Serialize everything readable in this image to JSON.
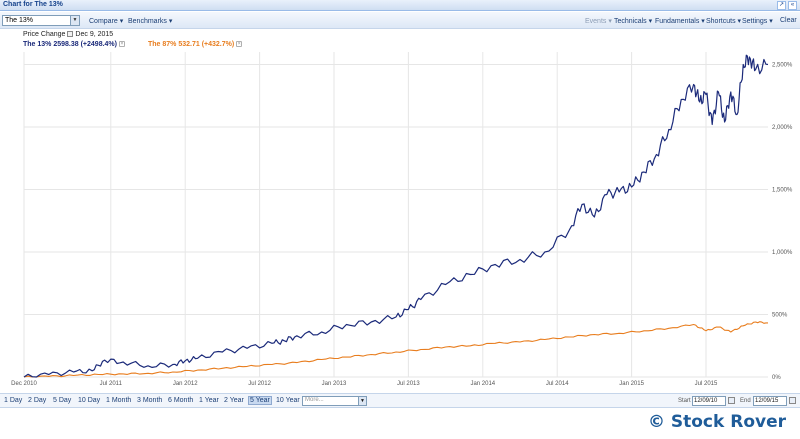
{
  "window": {
    "title": "Chart for The 13%",
    "btn_pin": "↗",
    "btn_collapse": "«"
  },
  "toolbar": {
    "symbol_value": "The 13%",
    "left_menus": [
      "Compare ▾",
      "Benchmarks ▾"
    ],
    "right_menus": [
      "Events ▾",
      "Technicals ▾",
      "Fundamentals ▾",
      "Shortcuts ▾",
      "Settings ▾",
      "Clear"
    ]
  },
  "header": {
    "price_change_label": "Price Change",
    "date": "Dec 9, 2015"
  },
  "legend": [
    {
      "text": "The 13% 2598.38 (+2498.4%)",
      "color": "#1b2a7a"
    },
    {
      "text": "The 87% 532.71 (+432.7%)",
      "color": "#e87d1e"
    }
  ],
  "chart_data": {
    "type": "line",
    "x_tick_labels": [
      "Dec 2010",
      "Jul 2011",
      "Jan 2012",
      "Jul 2012",
      "Jan 2013",
      "Jul 2013",
      "Jan 2014",
      "Jul 2014",
      "Jan 2015",
      "Jul 2015"
    ],
    "y_tick_labels": [
      "0%",
      "500%",
      "1,000%",
      "1,500%",
      "2,000%",
      "2,500%"
    ],
    "ylim": [
      0,
      2600
    ],
    "xlim": [
      0,
      60
    ],
    "grid": true,
    "series": [
      {
        "name": "The 13%",
        "color": "#1b2a7a",
        "x": [
          0,
          2,
          4,
          5.5,
          6.5,
          8,
          10,
          12,
          13,
          14,
          16,
          18,
          20,
          21,
          22,
          24,
          26,
          28,
          30,
          31,
          32,
          34,
          36,
          38,
          40,
          42,
          44,
          45,
          46,
          47,
          48,
          49,
          50,
          51,
          52,
          53,
          54,
          54.5,
          55,
          55.5,
          56,
          56.5,
          57,
          57.5,
          58,
          58.5,
          59,
          60
        ],
        "values": [
          0,
          20,
          40,
          50,
          135,
          120,
          90,
          100,
          130,
          150,
          200,
          230,
          270,
          290,
          330,
          360,
          420,
          440,
          480,
          540,
          620,
          740,
          820,
          900,
          940,
          1000,
          1180,
          1380,
          1280,
          1460,
          1480,
          1520,
          1640,
          1780,
          1980,
          2220,
          2340,
          2200,
          2260,
          2020,
          2280,
          2040,
          2280,
          2100,
          2500,
          2560,
          2460,
          2500
        ]
      },
      {
        "name": "The 87%",
        "color": "#e87d1e",
        "x": [
          0,
          2,
          4,
          6,
          8,
          10,
          12,
          14,
          16,
          18,
          20,
          22,
          24,
          26,
          28,
          30,
          32,
          34,
          36,
          38,
          40,
          42,
          44,
          46,
          48,
          50,
          52,
          54,
          55,
          56,
          57,
          58,
          59,
          60
        ],
        "values": [
          0,
          5,
          12,
          20,
          25,
          30,
          40,
          55,
          70,
          85,
          100,
          115,
          140,
          160,
          180,
          200,
          220,
          240,
          250,
          270,
          280,
          300,
          320,
          340,
          350,
          370,
          390,
          420,
          370,
          400,
          360,
          410,
          440,
          433
        ]
      }
    ]
  },
  "range_buttons": [
    "1 Day",
    "2 Day",
    "5 Day",
    "10 Day",
    "1 Month",
    "3 Month",
    "6 Month",
    "1 Year",
    "2 Year",
    "5 Year",
    "10 Year"
  ],
  "range_active": "5 Year",
  "more_placeholder": "More...",
  "date_range": {
    "start_label": "Start",
    "start_value": "12/09/10",
    "end_label": "End",
    "end_value": "12/09/15"
  },
  "watermark": "© Stock Rover"
}
